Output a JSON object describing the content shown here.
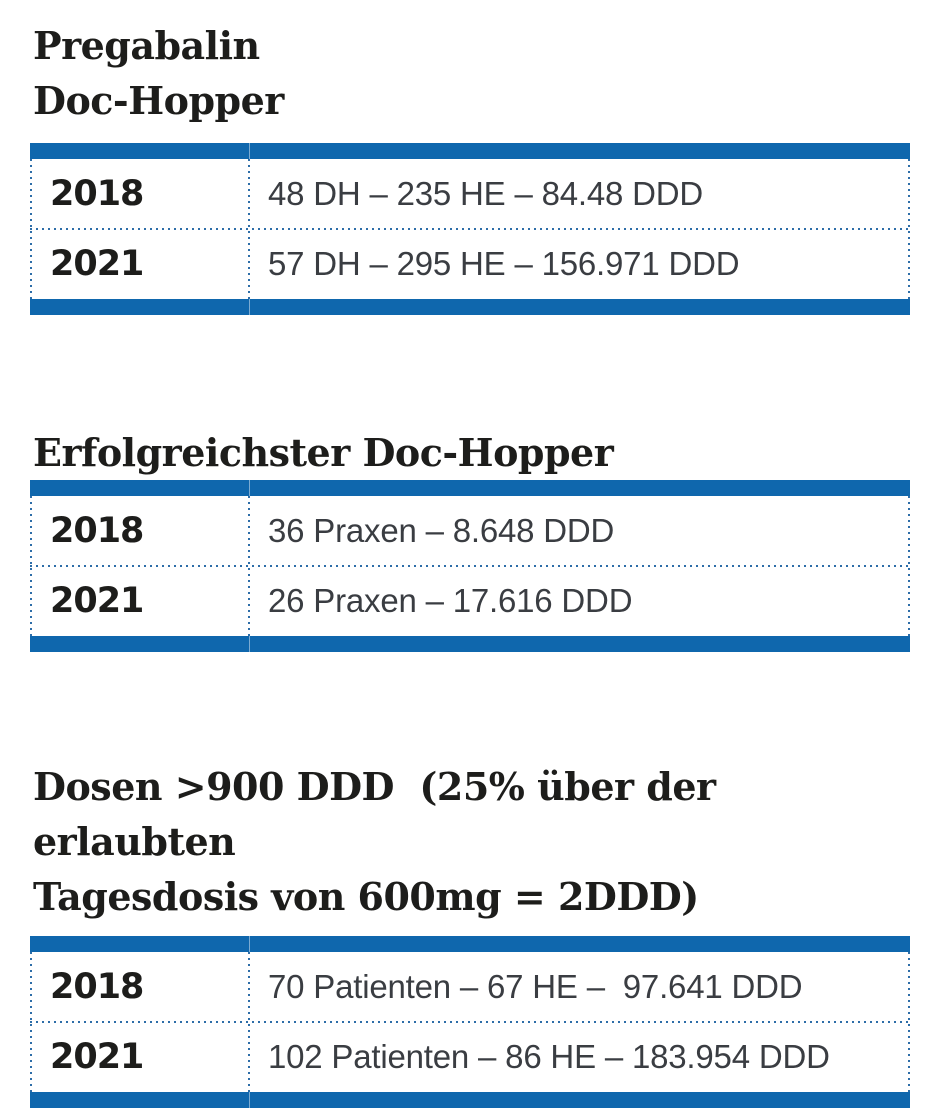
{
  "page": {
    "colors": {
      "accent_blue": "#0f67ad",
      "dot_blue": "#2d6da8",
      "title_color": "#1d1d1b",
      "year_color": "#1d1d1b",
      "value_color": "#3a3d42"
    }
  },
  "sections": [
    {
      "title_lines": [
        "Pregabalin",
        "Doc-Hopper"
      ],
      "rows": [
        {
          "year": "2018",
          "value": "48 DH – 235 HE – 84.48 DDD"
        },
        {
          "year": "2021",
          "value": "57 DH – 295 HE – 156.971 DDD"
        }
      ]
    },
    {
      "title_lines": [
        "Erfolgreichster Doc-Hopper"
      ],
      "rows": [
        {
          "year": "2018",
          "value": "36 Praxen – 8.648 DDD"
        },
        {
          "year": "2021",
          "value": "26 Praxen – 17.616 DDD"
        }
      ]
    },
    {
      "title_lines": [
        "Dosen >900 DDD  (25% über der erlaubten",
        "Tagesdosis von 600mg = 2DDD)"
      ],
      "rows": [
        {
          "year": "2018",
          "value": "70 Patienten – 67 HE –  97.641 DDD"
        },
        {
          "year": "2021",
          "value": "102 Patienten – 86 HE – 183.954 DDD"
        }
      ]
    }
  ]
}
